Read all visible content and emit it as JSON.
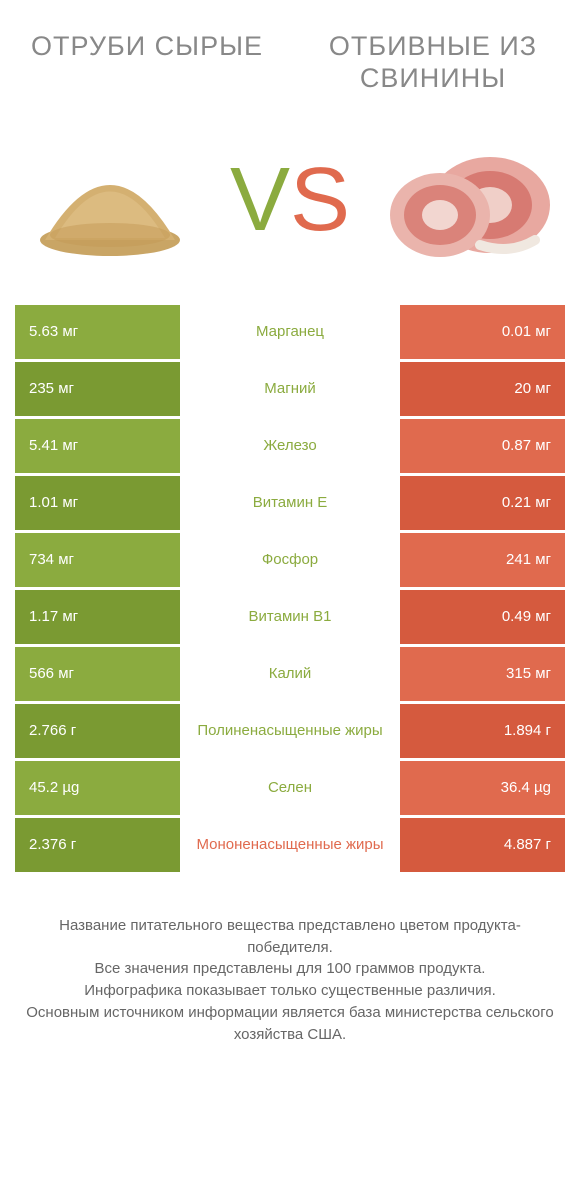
{
  "colors": {
    "green": "#8bab3f",
    "green_dark": "#7a9a32",
    "red": "#e06a4e",
    "red_dark": "#d55a3e",
    "text_green": "#8bab3f",
    "text_red": "#e06a4e",
    "header_text": "#888888",
    "footer_text": "#666666"
  },
  "header": {
    "left": "ОТРУБИ СЫРЫЕ",
    "right": "ОТБИВНЫЕ ИЗ СВИНИНЫ"
  },
  "vs": {
    "v": "V",
    "s": "S"
  },
  "rows": [
    {
      "left": "5.63 мг",
      "label": "Марганец",
      "right": "0.01 мг",
      "winner": "left"
    },
    {
      "left": "235 мг",
      "label": "Магний",
      "right": "20 мг",
      "winner": "left"
    },
    {
      "left": "5.41 мг",
      "label": "Железо",
      "right": "0.87 мг",
      "winner": "left"
    },
    {
      "left": "1.01 мг",
      "label": "Витамин E",
      "right": "0.21 мг",
      "winner": "left"
    },
    {
      "left": "734 мг",
      "label": "Фосфор",
      "right": "241 мг",
      "winner": "left"
    },
    {
      "left": "1.17 мг",
      "label": "Витамин B1",
      "right": "0.49 мг",
      "winner": "left"
    },
    {
      "left": "566 мг",
      "label": "Калий",
      "right": "315 мг",
      "winner": "left"
    },
    {
      "left": "2.766 г",
      "label": "Полиненасыщенные жиры",
      "right": "1.894 г",
      "winner": "left"
    },
    {
      "left": "45.2 µg",
      "label": "Селен",
      "right": "36.4 µg",
      "winner": "left"
    },
    {
      "left": "2.376 г",
      "label": "Мононенасыщенные жиры",
      "right": "4.887 г",
      "winner": "right"
    }
  ],
  "footer": [
    "Название питательного вещества представлено цветом продукта-победителя.",
    "Все значения представлены для 100 граммов продукта.",
    "Инфографика показывает только существенные различия.",
    "Основным источником информации является база министерства сельского хозяйства США."
  ]
}
